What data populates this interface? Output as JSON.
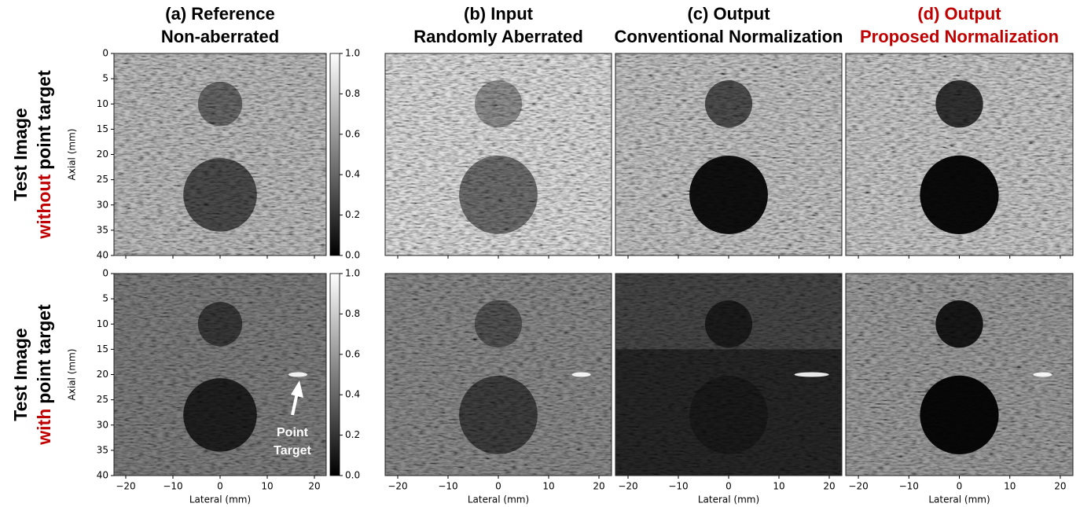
{
  "columns": [
    {
      "label": "(a) Reference",
      "sublabel": "Non-aberrated",
      "color": "#000000"
    },
    {
      "label": "(b) Input",
      "sublabel": "Randomly Aberrated",
      "color": "#000000"
    },
    {
      "label": "(c) Output",
      "sublabel": "Conventional Normalization",
      "color": "#000000"
    },
    {
      "label": "(d) Output",
      "sublabel": "Proposed Normalization",
      "color": "#c00000"
    }
  ],
  "rows": [
    {
      "line1": "Test Image",
      "highlight": "without",
      "rest": "point target"
    },
    {
      "line1": "Test Image",
      "highlight": "with",
      "rest": "point target"
    }
  ],
  "axes": {
    "x_label": "Lateral (mm)",
    "y_label": "Axial (mm)",
    "x_ticks": [
      "−20",
      "−10",
      "0",
      "10",
      "20"
    ],
    "y_ticks": [
      "0",
      "5",
      "10",
      "15",
      "20",
      "25",
      "30",
      "35",
      "40"
    ],
    "colorbar_ticks": [
      "0.0",
      "0.2",
      "0.4",
      "0.6",
      "0.8",
      "1.0"
    ]
  },
  "annotation": [
    "Point",
    "Target"
  ]
}
